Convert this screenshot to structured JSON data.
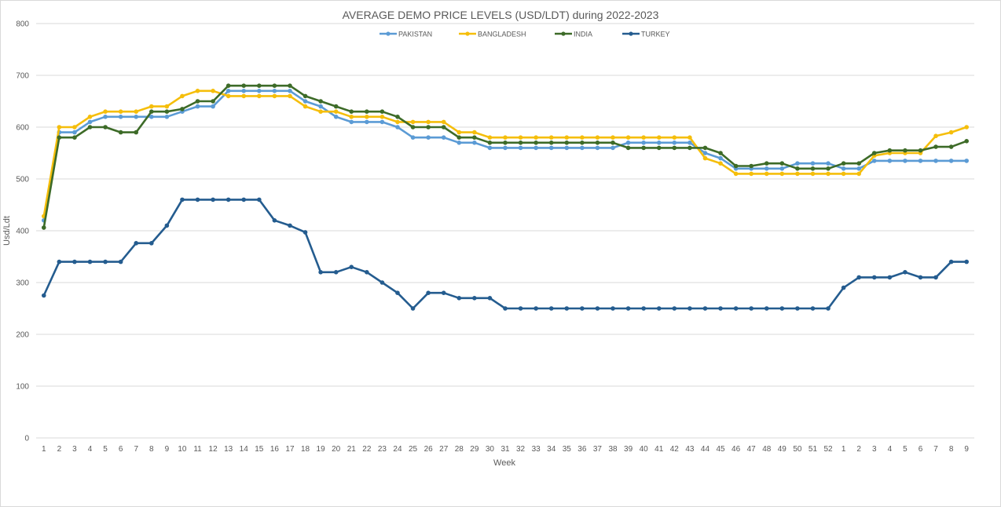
{
  "chart_data": {
    "type": "line",
    "title": "AVERAGE DEMO PRICE LEVELS (USD/LDT) during 2022-2023",
    "xlabel": "Week",
    "ylabel": "Usd/Ldt",
    "ylim": [
      0,
      800
    ],
    "yticks": [
      0,
      100,
      200,
      300,
      400,
      500,
      600,
      700,
      800
    ],
    "grid": true,
    "legend_position": "top",
    "categories": [
      "1",
      "2",
      "3",
      "4",
      "5",
      "6",
      "7",
      "8",
      "9",
      "10",
      "11",
      "12",
      "13",
      "14",
      "15",
      "16",
      "17",
      "18",
      "19",
      "20",
      "21",
      "22",
      "23",
      "24",
      "25",
      "26",
      "27",
      "28",
      "29",
      "30",
      "31",
      "32",
      "33",
      "34",
      "35",
      "36",
      "37",
      "38",
      "39",
      "40",
      "41",
      "42",
      "43",
      "44",
      "45",
      "46",
      "47",
      "48",
      "49",
      "50",
      "51",
      "52",
      "1",
      "2",
      "3",
      "4",
      "5",
      "6",
      "7",
      "8",
      "9"
    ],
    "series": [
      {
        "name": "PAKISTAN",
        "color": "#5b9bd5",
        "values": [
          420,
          590,
          590,
          610,
          620,
          620,
          620,
          620,
          620,
          630,
          640,
          640,
          670,
          670,
          670,
          670,
          670,
          650,
          640,
          620,
          610,
          610,
          610,
          600,
          580,
          580,
          580,
          570,
          570,
          560,
          560,
          560,
          560,
          560,
          560,
          560,
          560,
          560,
          570,
          570,
          570,
          570,
          570,
          550,
          540,
          520,
          520,
          520,
          520,
          530,
          530,
          530,
          520,
          520,
          535,
          535,
          535,
          535,
          535,
          535,
          535
        ]
      },
      {
        "name": "BANGLADESH",
        "color": "#f5be0b",
        "values": [
          428,
          600,
          600,
          620,
          630,
          630,
          630,
          640,
          640,
          660,
          670,
          670,
          660,
          660,
          660,
          660,
          660,
          640,
          630,
          630,
          620,
          620,
          620,
          610,
          610,
          610,
          610,
          590,
          590,
          580,
          580,
          580,
          580,
          580,
          580,
          580,
          580,
          580,
          580,
          580,
          580,
          580,
          580,
          540,
          530,
          510,
          510,
          510,
          510,
          510,
          510,
          510,
          510,
          510,
          545,
          550,
          550,
          550,
          583,
          590,
          600
        ]
      },
      {
        "name": "INDIA",
        "color": "#3d6b28",
        "values": [
          406,
          580,
          580,
          600,
          600,
          590,
          590,
          630,
          630,
          635,
          650,
          650,
          680,
          680,
          680,
          680,
          680,
          660,
          650,
          640,
          630,
          630,
          630,
          620,
          600,
          600,
          600,
          580,
          580,
          570,
          570,
          570,
          570,
          570,
          570,
          570,
          570,
          570,
          560,
          560,
          560,
          560,
          560,
          560,
          550,
          525,
          525,
          530,
          530,
          520,
          520,
          520,
          530,
          530,
          550,
          555,
          555,
          555,
          562,
          562,
          573
        ]
      },
      {
        "name": "TURKEY",
        "color": "#245c8f",
        "values": [
          275,
          340,
          340,
          340,
          340,
          340,
          376,
          376,
          410,
          460,
          460,
          460,
          460,
          460,
          460,
          420,
          410,
          397,
          320,
          320,
          330,
          320,
          300,
          280,
          250,
          280,
          280,
          270,
          270,
          270,
          250,
          250,
          250,
          250,
          250,
          250,
          250,
          250,
          250,
          250,
          250,
          250,
          250,
          250,
          250,
          250,
          250,
          250,
          250,
          250,
          250,
          250,
          290,
          310,
          310,
          310,
          320,
          310,
          310,
          340,
          340
        ]
      }
    ]
  }
}
